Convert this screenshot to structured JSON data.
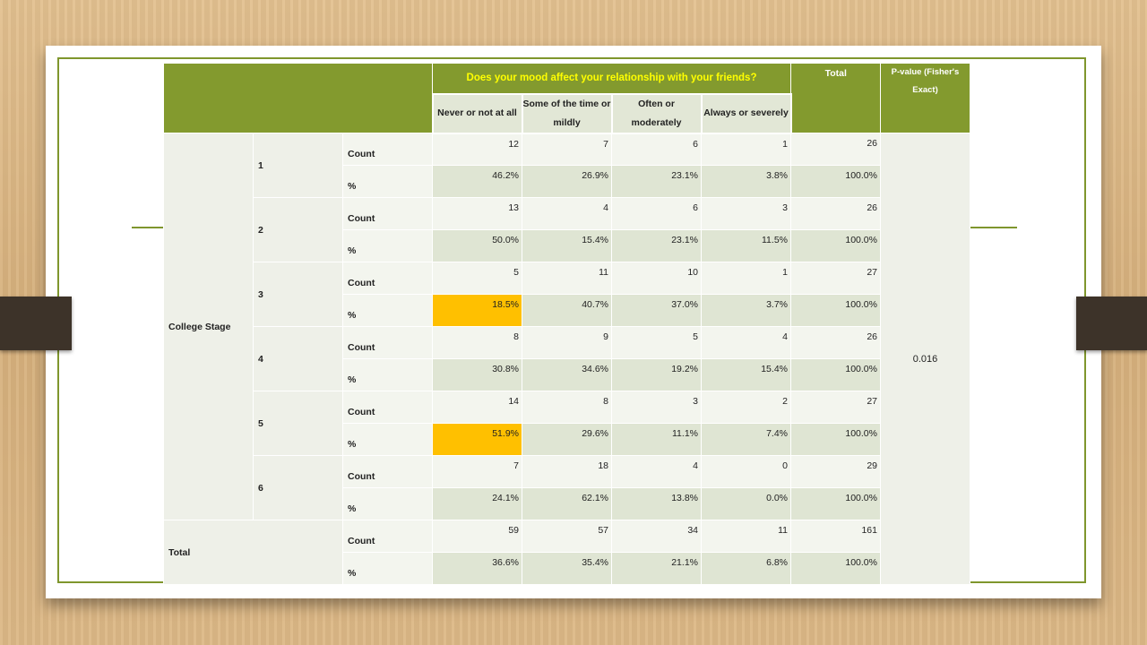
{
  "header": {
    "question": "Does your mood affect your relationship with your friends?",
    "total": "Total",
    "pvalue": "P-value (Fisher's Exact)"
  },
  "columns": [
    "Never or not at all",
    "Some of the time or mildly",
    "Often or moderately",
    "Always or severely"
  ],
  "row_group_label": "College Stage",
  "stages": [
    {
      "stage": "1",
      "count": [
        "12",
        "7",
        "6",
        "1",
        "26"
      ],
      "pct": [
        "46.2%",
        "26.9%",
        "23.1%",
        "3.8%",
        "100.0%"
      ]
    },
    {
      "stage": "2",
      "count": [
        "13",
        "4",
        "6",
        "3",
        "26"
      ],
      "pct": [
        "50.0%",
        "15.4%",
        "23.1%",
        "11.5%",
        "100.0%"
      ]
    },
    {
      "stage": "3",
      "count": [
        "5",
        "11",
        "10",
        "1",
        "27"
      ],
      "pct": [
        "18.5%",
        "40.7%",
        "37.0%",
        "3.7%",
        "100.0%"
      ]
    },
    {
      "stage": "4",
      "count": [
        "8",
        "9",
        "5",
        "4",
        "26"
      ],
      "pct": [
        "30.8%",
        "34.6%",
        "19.2%",
        "15.4%",
        "100.0%"
      ]
    },
    {
      "stage": "5",
      "count": [
        "14",
        "8",
        "3",
        "2",
        "27"
      ],
      "pct": [
        "51.9%",
        "29.6%",
        "11.1%",
        "7.4%",
        "100.0%"
      ]
    },
    {
      "stage": "6",
      "count": [
        "7",
        "18",
        "4",
        "0",
        "29"
      ],
      "pct": [
        "24.1%",
        "62.1%",
        "13.8%",
        "0.0%",
        "100.0%"
      ]
    }
  ],
  "total_row": {
    "label": "Total",
    "count": [
      "59",
      "57",
      "34",
      "11",
      "161"
    ],
    "pct": [
      "36.6%",
      "35.4%",
      "21.1%",
      "6.8%",
      "100.0%"
    ]
  },
  "row_type_labels": {
    "count": "Count",
    "pct": "%"
  },
  "p_value": "0.016",
  "colors": {
    "header": "#839a2e",
    "question_text": "#ffff00",
    "highlight": "#ffc000",
    "frame": "#7f962d"
  }
}
